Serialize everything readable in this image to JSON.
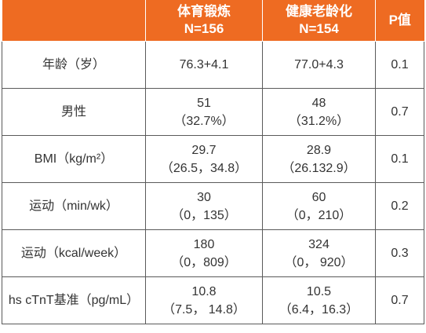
{
  "table": {
    "header": {
      "corner": "",
      "group1_title": "体育锻炼",
      "group1_n": "N=156",
      "group2_title": "健康老龄化",
      "group2_n": "N=154",
      "pvalue": "P值"
    },
    "rows": [
      {
        "label": "年龄（岁）",
        "g1_line1": "76.3+4.1",
        "g1_line2": "",
        "g2_line1": "77.0+4.3",
        "g2_line2": "",
        "p": "0.1"
      },
      {
        "label": "男性",
        "g1_line1": "51",
        "g1_line2": "（32.7%）",
        "g2_line1": "48",
        "g2_line2": "（31.2%）",
        "p": "0.7"
      },
      {
        "label": "BMI（kg/m²）",
        "g1_line1": "29.7",
        "g1_line2": "（26.5，34.8）",
        "g2_line1": "28.9",
        "g2_line2": "（26.132.9）",
        "p": "0.1"
      },
      {
        "label": "运动（min/wk）",
        "g1_line1": "30",
        "g1_line2": "（0，135）",
        "g2_line1": "60",
        "g2_line2": "（0，210）",
        "p": "0.2"
      },
      {
        "label": "运动（kcal/week）",
        "g1_line1": "180",
        "g1_line2": "（0，809）",
        "g2_line1": "324",
        "g2_line2": "（0， 920）",
        "p": "0.3"
      },
      {
        "label": "hs cTnT基准（pg/mL）",
        "g1_line1": "10.8",
        "g1_line2": "（7.5， 14.8）",
        "g2_line1": "10.5",
        "g2_line2": "（6.4，16.3）",
        "p": "0.7"
      }
    ]
  },
  "colors": {
    "header_bg": "#ee6b22",
    "header_text": "#ffffff",
    "grid": "#5a5a5a",
    "body_text": "#333333"
  }
}
